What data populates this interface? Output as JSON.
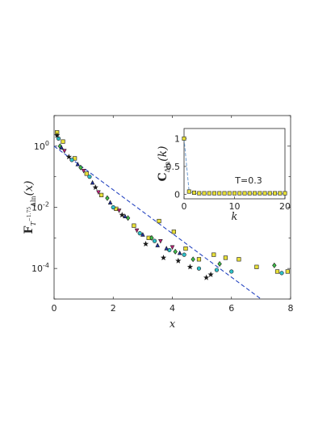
{
  "chart_data": [
    {
      "type": "scatter",
      "xlabel": "x",
      "ylabel_main": "F",
      "ylabel_sub": "T",
      "ylabel_exp": "−1.75",
      "ylabel_tail": "Δln",
      "ylabel_arg": "(x)",
      "scale_y": "log",
      "xlim": [
        0,
        8
      ],
      "ylim_log10": [
        -5,
        1
      ],
      "x_ticks": [
        0,
        2,
        4,
        6,
        8
      ],
      "y_ticks": [
        {
          "exp": 0,
          "label": "10",
          "sup": "0"
        },
        {
          "exp": -2,
          "label": "10",
          "sup": "-2"
        },
        {
          "exp": -4,
          "label": "10",
          "sup": "-4"
        }
      ],
      "fit_line": {
        "style": "dashed",
        "color": "#1f3fbf",
        "x": [
          0,
          7
        ],
        "log10y": [
          0.0,
          -5.0
        ]
      },
      "series": [
        {
          "marker": "square",
          "color": "#e8e03a",
          "points": [
            [
              0.1,
              0.45
            ],
            [
              0.3,
              0.15
            ],
            [
              0.7,
              -0.4
            ],
            [
              1.1,
              -0.9
            ],
            [
              1.6,
              -1.6
            ],
            [
              2.1,
              -2.05
            ],
            [
              2.7,
              -2.6
            ],
            [
              3.2,
              -3.0
            ],
            [
              3.55,
              -2.45
            ],
            [
              4.05,
              -2.8
            ],
            [
              4.45,
              -3.35
            ],
            [
              4.9,
              -3.7
            ],
            [
              5.4,
              -3.55
            ],
            [
              5.8,
              -3.65
            ],
            [
              6.25,
              -3.7
            ],
            [
              6.85,
              -3.95
            ],
            [
              7.55,
              -4.1
            ],
            [
              7.9,
              -4.1
            ]
          ]
        },
        {
          "marker": "circle",
          "color": "#2ec0c8",
          "points": [
            [
              0.15,
              0.25
            ],
            [
              0.6,
              -0.45
            ],
            [
              1.2,
              -1.0
            ],
            [
              2.0,
              -2.0
            ],
            [
              2.9,
              -2.85
            ],
            [
              3.4,
              -3.1
            ],
            [
              3.9,
              -3.4
            ],
            [
              4.4,
              -3.55
            ],
            [
              4.9,
              -4.0
            ],
            [
              5.5,
              -4.05
            ],
            [
              6.0,
              -4.1
            ],
            [
              7.7,
              -4.15
            ]
          ]
        },
        {
          "marker": "diamond",
          "color": "#3fbf4a",
          "points": [
            [
              0.2,
              0.0
            ],
            [
              0.9,
              -0.7
            ],
            [
              1.8,
              -1.7
            ],
            [
              2.5,
              -2.35
            ],
            [
              3.3,
              -3.0
            ],
            [
              4.1,
              -3.45
            ],
            [
              4.7,
              -3.7
            ],
            [
              5.6,
              -3.85
            ],
            [
              7.45,
              -3.9
            ]
          ]
        },
        {
          "marker": "triangle-up",
          "color": "#1f2f9f",
          "points": [
            [
              0.25,
              -0.05
            ],
            [
              0.8,
              -0.6
            ],
            [
              1.3,
              -1.2
            ],
            [
              1.9,
              -1.85
            ],
            [
              2.4,
              -2.3
            ],
            [
              3.0,
              -2.9
            ],
            [
              3.5,
              -3.25
            ],
            [
              3.8,
              -3.35
            ],
            [
              4.25,
              -3.5
            ]
          ]
        },
        {
          "marker": "triangle-down",
          "color": "#c0217a",
          "points": [
            [
              0.35,
              -0.15
            ],
            [
              1.0,
              -0.8
            ],
            [
              1.5,
              -1.5
            ],
            [
              2.2,
              -2.1
            ],
            [
              2.8,
              -2.75
            ],
            [
              3.6,
              -3.1
            ],
            [
              4.0,
              -3.3
            ]
          ]
        },
        {
          "marker": "star",
          "color": "#1a1a1a",
          "points": [
            [
              0.1,
              0.35
            ],
            [
              0.5,
              -0.35
            ],
            [
              1.4,
              -1.35
            ],
            [
              2.3,
              -2.25
            ],
            [
              3.1,
              -3.2
            ],
            [
              3.7,
              -3.65
            ],
            [
              4.2,
              -3.75
            ],
            [
              4.6,
              -3.95
            ],
            [
              5.15,
              -4.3
            ],
            [
              5.3,
              -4.2
            ]
          ]
        }
      ]
    },
    {
      "type": "scatter",
      "title": "",
      "xlabel": "k",
      "ylabel_main": "C",
      "ylabel_sub": "Δln",
      "ylabel_arg": "(k)",
      "xlim": [
        0,
        20
      ],
      "ylim": [
        -0.08,
        1.18
      ],
      "x_ticks": [
        0,
        10,
        20
      ],
      "y_ticks": [
        0,
        0.5,
        1
      ],
      "annotation": "T=0.3",
      "line": {
        "style": "dashed",
        "color": "#5a8fc9",
        "x": [
          0,
          1,
          2,
          3,
          4,
          5,
          6,
          7,
          8,
          9,
          10,
          11,
          12,
          13,
          14,
          15,
          16,
          17,
          18,
          19,
          20
        ],
        "y": [
          1.0,
          0.05,
          0.02,
          0.015,
          0.01,
          0.01,
          0.01,
          0.01,
          0.01,
          0.01,
          0.01,
          0.01,
          0.01,
          0.01,
          0.01,
          0.01,
          0.01,
          0.01,
          0.01,
          0.01,
          0.01
        ]
      },
      "series": [
        {
          "marker": "square",
          "color": "#e8e03a",
          "x": [
            0,
            1,
            2,
            3,
            4,
            5,
            6,
            7,
            8,
            9,
            10,
            11,
            12,
            13,
            14,
            15,
            16,
            17,
            18,
            19,
            20
          ],
          "y": [
            1.0,
            0.05,
            0.03,
            0.02,
            0.02,
            0.02,
            0.02,
            0.02,
            0.02,
            0.02,
            0.02,
            0.02,
            0.02,
            0.02,
            0.02,
            0.02,
            0.02,
            0.02,
            0.02,
            0.02,
            0.02
          ]
        }
      ]
    }
  ]
}
